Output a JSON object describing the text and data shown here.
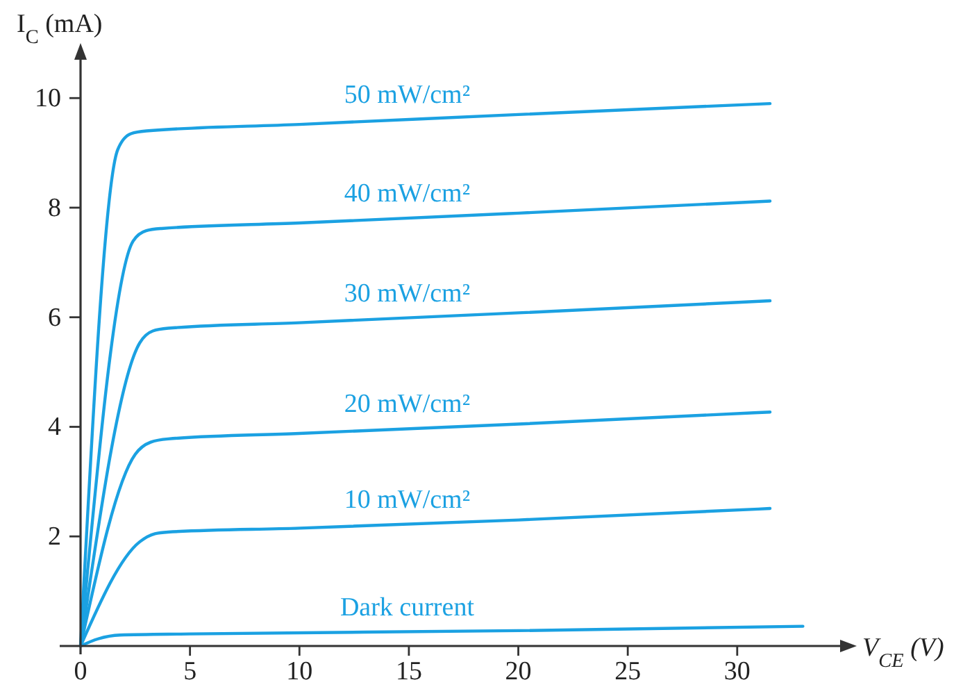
{
  "chart_data": {
    "type": "line",
    "xlabel": "V$_{CE}$ (V)",
    "ylabel": "I$_{C}$ (mA)",
    "xlim": [
      0,
      34.7
    ],
    "ylim": [
      0,
      10.7
    ],
    "xticks": [
      0,
      5,
      10,
      15,
      20,
      25,
      30
    ],
    "yticks": [
      2,
      4,
      6,
      8,
      10
    ],
    "grid": false,
    "marker": "none",
    "series": [
      {
        "name": "50 mW/cm²",
        "color": "#1ba1e2",
        "x": [
          0,
          1.7,
          2.3,
          3,
          10,
          20,
          31.5
        ],
        "values": [
          0,
          9.06,
          9.35,
          9.4,
          9.52,
          9.7,
          9.9
        ]
      },
      {
        "name": "40 mW/cm²",
        "color": "#1ba1e2",
        "x": [
          0,
          2.4,
          3,
          3.7,
          10,
          20,
          31.5
        ],
        "values": [
          0,
          7.39,
          7.58,
          7.62,
          7.72,
          7.9,
          8.12
        ]
      },
      {
        "name": "30 mW/cm²",
        "color": "#1ba1e2",
        "x": [
          0,
          2.7,
          3.3,
          4,
          10,
          20,
          31.5
        ],
        "values": [
          0,
          5.53,
          5.75,
          5.8,
          5.9,
          6.08,
          6.3
        ]
      },
      {
        "name": "20 mW/cm²",
        "color": "#1ba1e2",
        "x": [
          0,
          2.5,
          3.2,
          4,
          10,
          20,
          31.5
        ],
        "values": [
          0,
          3.5,
          3.72,
          3.78,
          3.88,
          4.05,
          4.27
        ]
      },
      {
        "name": "10 mW/cm²",
        "color": "#1ba1e2",
        "x": [
          0,
          2.7,
          3.4,
          4,
          10,
          20,
          31.5
        ],
        "values": [
          0,
          1.9,
          2.05,
          2.08,
          2.15,
          2.3,
          2.51
        ]
      },
      {
        "name": "Dark current",
        "color": "#1ba1e2",
        "x": [
          0,
          0.8,
          1.8,
          5,
          20,
          33
        ],
        "values": [
          0,
          0.13,
          0.2,
          0.22,
          0.28,
          0.36
        ]
      }
    ]
  }
}
